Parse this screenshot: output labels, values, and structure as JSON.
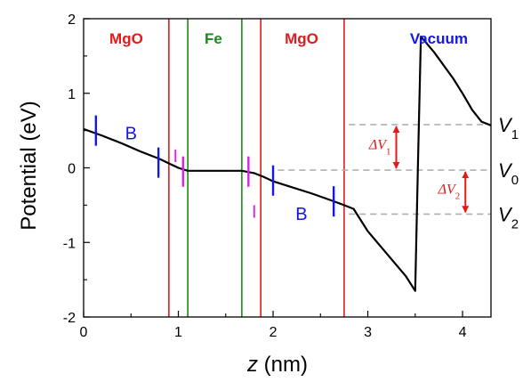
{
  "chart_data": {
    "type": "line",
    "xlabel_var": "z",
    "xlabel_unit": " (nm)",
    "ylabel": "Potential (eV)",
    "xlim": [
      0,
      4.3
    ],
    "ylim": [
      -2,
      2
    ],
    "x_ticks": [
      {
        "value": 0,
        "label": "0"
      },
      {
        "value": 1,
        "label": "1"
      },
      {
        "value": 2,
        "label": "2"
      },
      {
        "value": 3,
        "label": "3"
      },
      {
        "value": 4,
        "label": "4"
      }
    ],
    "y_ticks": [
      {
        "value": -2,
        "label": "-2"
      },
      {
        "value": -1,
        "label": "-1"
      },
      {
        "value": 0,
        "label": "0"
      },
      {
        "value": 1,
        "label": "1"
      },
      {
        "value": 2,
        "label": "2"
      }
    ],
    "series": [
      {
        "color": "#000000",
        "x": [
          0,
          0.2,
          0.4,
          0.6,
          0.8,
          0.9,
          1.0,
          1.1,
          1.3,
          1.5,
          1.67,
          1.8,
          1.9,
          2.0,
          2.2,
          2.4,
          2.6,
          2.75,
          2.85,
          3.0,
          3.2,
          3.4,
          3.5,
          3.53,
          3.56,
          3.7,
          3.9,
          4.0,
          4.1,
          4.2,
          4.3
        ],
        "y": [
          0.52,
          0.43,
          0.33,
          0.22,
          0.12,
          0.06,
          0.0,
          -0.04,
          -0.04,
          -0.04,
          -0.04,
          -0.07,
          -0.12,
          -0.18,
          -0.26,
          -0.34,
          -0.43,
          -0.5,
          -0.55,
          -0.85,
          -1.15,
          -1.45,
          -1.65,
          0.1,
          1.76,
          1.55,
          1.2,
          1.0,
          0.78,
          0.62,
          0.57
        ]
      }
    ],
    "regions": [
      {
        "label": "MgO",
        "color": "#e31a1c",
        "x": 0.45
      },
      {
        "label": "Fe",
        "color": "#1a8a1a",
        "x": 1.37
      },
      {
        "label": "MgO",
        "color": "#e31a1c",
        "x": 2.3
      },
      {
        "label": "Vacuum",
        "color": "#1515ee",
        "x": 3.75
      }
    ],
    "boundaries": [
      {
        "x": 0.9,
        "color": "#e31a1c"
      },
      {
        "x": 1.1,
        "color": "#1a8a1a"
      },
      {
        "x": 1.67,
        "color": "#1a8a1a"
      },
      {
        "x": 1.87,
        "color": "#e31a1c"
      },
      {
        "x": 2.75,
        "color": "#e31a1c"
      }
    ],
    "tick_marks": [
      {
        "x": 0.13,
        "y": 0.5,
        "color": "#1515ee"
      },
      {
        "x": 0.79,
        "y": 0.07,
        "color": "#1515ee"
      },
      {
        "x": 1.05,
        "y": -0.05,
        "color": "#e020e0"
      },
      {
        "x": 1.74,
        "y": -0.05,
        "color": "#e020e0"
      },
      {
        "x": 2.0,
        "y": -0.17,
        "color": "#1515ee"
      },
      {
        "x": 2.64,
        "y": -0.45,
        "color": "#1515ee"
      }
    ],
    "annotations": [
      {
        "text": "B",
        "color": "#1515ee",
        "x": 0.5,
        "y": 0.38
      },
      {
        "text": "I",
        "color": "#e020e0",
        "x": 0.97,
        "y": 0.08
      },
      {
        "text": "I",
        "color": "#e020e0",
        "x": 1.8,
        "y": -0.67
      },
      {
        "text": "B",
        "color": "#1515ee",
        "x": 2.3,
        "y": -0.7
      }
    ],
    "reference_lines": [
      {
        "y": 0.58,
        "x_start": 2.8,
        "name": "V",
        "sub": "1"
      },
      {
        "y": -0.03,
        "x_start": 2.05,
        "name": "V",
        "sub": "0"
      },
      {
        "y": -0.62,
        "x_start": 2.8,
        "name": "V",
        "sub": "2"
      }
    ],
    "deltas": [
      {
        "label": "ΔV",
        "sub": "1",
        "color": "#e31a1c",
        "x": 3.3,
        "y_top": 0.58,
        "y_bottom": -0.03
      },
      {
        "label": "ΔV",
        "sub": "2",
        "color": "#e31a1c",
        "x": 4.03,
        "y_top": -0.03,
        "y_bottom": -0.62
      }
    ]
  }
}
